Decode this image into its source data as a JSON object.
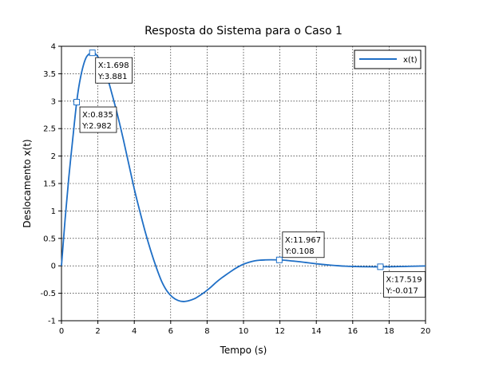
{
  "chart_data": {
    "type": "line",
    "title": "Resposta do Sistema para o Caso  1",
    "xlabel": "Tempo (s)",
    "ylabel": "Deslocamento x(t)",
    "xlim": [
      0,
      20
    ],
    "ylim": [
      -1,
      4
    ],
    "xticks": [
      0,
      2,
      4,
      6,
      8,
      10,
      12,
      14,
      16,
      18,
      20
    ],
    "yticks": [
      -1,
      -0.5,
      0,
      0.5,
      1,
      1.5,
      2,
      2.5,
      3,
      3.5,
      4
    ],
    "xtick_labels": [
      "0",
      "2",
      "4",
      "6",
      "8",
      "10",
      "12",
      "14",
      "16",
      "18",
      "20"
    ],
    "ytick_labels": [
      "-1",
      "-0.5",
      "0",
      "0.5",
      "1",
      "1.5",
      "2",
      "2.5",
      "3",
      "3.5",
      "4"
    ],
    "grid": true,
    "legend_position": "top-right",
    "series": [
      {
        "name": "x(t)",
        "color": "#1f6fc6",
        "x": [
          0,
          0.2,
          0.4,
          0.6,
          0.835,
          1.0,
          1.2,
          1.4,
          1.698,
          1.9,
          2.2,
          2.5,
          2.8,
          3.1,
          3.4,
          3.7,
          4.0,
          4.3,
          4.6,
          4.9,
          5.2,
          5.5,
          5.8,
          6.1,
          6.4,
          6.7,
          7.0,
          7.3,
          7.6,
          7.9,
          8.2,
          8.5,
          8.8,
          9.1,
          9.4,
          9.7,
          10.0,
          10.3,
          10.6,
          10.9,
          11.2,
          11.5,
          11.967,
          12.4,
          12.8,
          13.2,
          13.6,
          14.0,
          14.4,
          14.8,
          15.2,
          15.6,
          16.0,
          16.4,
          16.8,
          17.2,
          17.519,
          18.0,
          18.5,
          19.0,
          19.5,
          20.0
        ],
        "y": [
          0,
          0.85,
          1.6,
          2.25,
          2.982,
          3.35,
          3.65,
          3.82,
          3.881,
          3.85,
          3.7,
          3.45,
          3.1,
          2.72,
          2.3,
          1.85,
          1.4,
          1.0,
          0.62,
          0.28,
          -0.02,
          -0.28,
          -0.46,
          -0.57,
          -0.63,
          -0.65,
          -0.635,
          -0.6,
          -0.54,
          -0.47,
          -0.39,
          -0.3,
          -0.22,
          -0.15,
          -0.08,
          -0.02,
          0.03,
          0.065,
          0.09,
          0.103,
          0.108,
          0.11,
          0.108,
          0.098,
          0.085,
          0.07,
          0.054,
          0.038,
          0.024,
          0.012,
          0.002,
          -0.006,
          -0.011,
          -0.015,
          -0.017,
          -0.018,
          -0.017,
          -0.016,
          -0.014,
          -0.01,
          -0.006,
          -0.003
        ]
      }
    ],
    "datatips": [
      {
        "x": 1.698,
        "y": 3.881,
        "xtext": "X:1.698",
        "ytext": "Y:3.881",
        "placement": "below-right"
      },
      {
        "x": 0.835,
        "y": 2.982,
        "xtext": "X:0.835",
        "ytext": "Y:2.982",
        "placement": "below-right"
      },
      {
        "x": 11.967,
        "y": 0.108,
        "xtext": "X:11.967",
        "ytext": "Y:0.108",
        "placement": "above-right"
      },
      {
        "x": 17.519,
        "y": -0.017,
        "xtext": "X:17.519",
        "ytext": "Y:-0.017",
        "placement": "below-right"
      }
    ]
  }
}
